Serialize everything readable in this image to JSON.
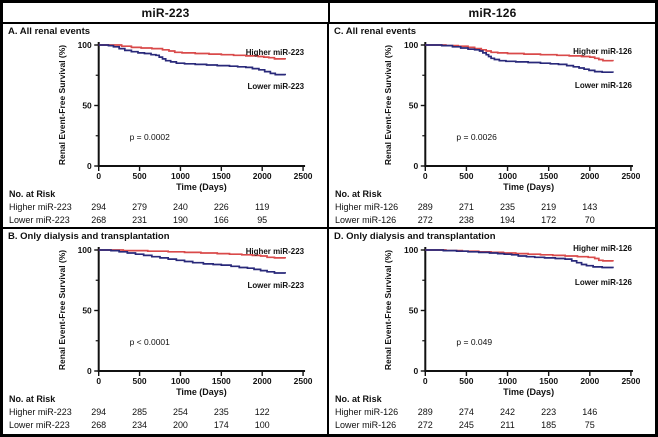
{
  "figure": {
    "headers": {
      "left": "miR-223",
      "right": "miR-126"
    },
    "colors": {
      "higher": "#D94A4A",
      "lower": "#29297A",
      "axis": "#111111",
      "text": "#111111"
    }
  },
  "chart_data": [
    {
      "type": "line",
      "panel": "A",
      "title": "A. All renal events",
      "group": "miR-223",
      "p_value": "p = 0.0002",
      "xlabel": "Time (Days)",
      "ylabel": "Renal Event-Free Survival (%)",
      "x_ticks": [
        0,
        500,
        1000,
        1500,
        2000,
        2500
      ],
      "y_ticks": [
        100,
        50,
        0
      ],
      "y_minor_ticks": [
        75,
        25
      ],
      "xlim": [
        0,
        2500
      ],
      "ylim": [
        0,
        100
      ],
      "series": [
        {
          "name": "Higher miR-223",
          "role": "higher",
          "label_y": 18,
          "points": [
            [
              0,
              100
            ],
            [
              200,
              100
            ],
            [
              280,
              99
            ],
            [
              400,
              98
            ],
            [
              520,
              97.5
            ],
            [
              650,
              97
            ],
            [
              780,
              96
            ],
            [
              860,
              95
            ],
            [
              930,
              94
            ],
            [
              1020,
              93.5
            ],
            [
              1180,
              93
            ],
            [
              1350,
              92.5
            ],
            [
              1500,
              92
            ],
            [
              1650,
              91.5
            ],
            [
              1800,
              91
            ],
            [
              1950,
              90.5
            ],
            [
              2020,
              90
            ],
            [
              2080,
              89.5
            ],
            [
              2150,
              88.5
            ],
            [
              2280,
              88
            ]
          ]
        },
        {
          "name": "Lower miR-223",
          "role": "lower",
          "label_y": 52,
          "points": [
            [
              0,
              100
            ],
            [
              120,
              99.5
            ],
            [
              180,
              98.5
            ],
            [
              250,
              97
            ],
            [
              320,
              95.5
            ],
            [
              400,
              94.5
            ],
            [
              480,
              93.5
            ],
            [
              560,
              93
            ],
            [
              640,
              92
            ],
            [
              700,
              91.5
            ],
            [
              740,
              90
            ],
            [
              780,
              88.5
            ],
            [
              820,
              87
            ],
            [
              880,
              86
            ],
            [
              950,
              85
            ],
            [
              1050,
              84.5
            ],
            [
              1180,
              84
            ],
            [
              1320,
              83.5
            ],
            [
              1450,
              83
            ],
            [
              1600,
              82.5
            ],
            [
              1700,
              82
            ],
            [
              1800,
              81.5
            ],
            [
              1880,
              80.5
            ],
            [
              1960,
              79.5
            ],
            [
              2030,
              78
            ],
            [
              2100,
              76.5
            ],
            [
              2160,
              75.5
            ],
            [
              2280,
              75
            ]
          ]
        }
      ],
      "risk_table": {
        "header": "No. at Risk",
        "days": [
          0,
          500,
          1000,
          1500,
          2000
        ],
        "rows": [
          {
            "label": "Higher miR-223",
            "values": [
              "294",
              "279",
              "240",
              "226",
              "119"
            ]
          },
          {
            "label": "Lower miR-223",
            "values": [
              "268",
              "231",
              "190",
              "166",
              "95"
            ]
          }
        ]
      }
    },
    {
      "type": "line",
      "panel": "B",
      "title": "B. Only dialysis and transplantation",
      "group": "miR-223",
      "p_value": "p < 0.0001",
      "xlabel": "Time (Days)",
      "ylabel": "Renal Event-Free Survival (%)",
      "x_ticks": [
        0,
        500,
        1000,
        1500,
        2000,
        2500
      ],
      "y_ticks": [
        100,
        50,
        0
      ],
      "y_minor_ticks": [
        75,
        25
      ],
      "xlim": [
        0,
        2500
      ],
      "ylim": [
        0,
        100
      ],
      "series": [
        {
          "name": "Higher miR-223",
          "role": "higher",
          "label_y": 12,
          "points": [
            [
              0,
              100
            ],
            [
              300,
              99.5
            ],
            [
              600,
              99
            ],
            [
              850,
              98.5
            ],
            [
              1050,
              98
            ],
            [
              1250,
              97.5
            ],
            [
              1450,
              97
            ],
            [
              1600,
              96.5
            ],
            [
              1750,
              96
            ],
            [
              1880,
              95.5
            ],
            [
              1980,
              95
            ],
            [
              2060,
              94
            ],
            [
              2150,
              93.5
            ],
            [
              2280,
              93
            ]
          ]
        },
        {
          "name": "Lower miR-223",
          "role": "lower",
          "label_y": 46,
          "points": [
            [
              0,
              100
            ],
            [
              150,
              99.5
            ],
            [
              250,
              98.5
            ],
            [
              350,
              97.5
            ],
            [
              450,
              96.5
            ],
            [
              550,
              95.5
            ],
            [
              650,
              94.5
            ],
            [
              750,
              93.5
            ],
            [
              850,
              92.5
            ],
            [
              950,
              91.5
            ],
            [
              1050,
              90.5
            ],
            [
              1150,
              89.5
            ],
            [
              1280,
              88.5
            ],
            [
              1400,
              88
            ],
            [
              1500,
              87.5
            ],
            [
              1620,
              86.5
            ],
            [
              1720,
              85.5
            ],
            [
              1820,
              85
            ],
            [
              1900,
              84
            ],
            [
              1980,
              83
            ],
            [
              2060,
              82
            ],
            [
              2150,
              81
            ],
            [
              2280,
              80.5
            ]
          ]
        }
      ],
      "risk_table": {
        "header": "No. at Risk",
        "days": [
          0,
          500,
          1000,
          1500,
          2000
        ],
        "rows": [
          {
            "label": "Higher miR-223",
            "values": [
              "294",
              "285",
              "254",
              "235",
              "122"
            ]
          },
          {
            "label": "Lower miR-223",
            "values": [
              "268",
              "234",
              "200",
              "174",
              "100"
            ]
          }
        ]
      }
    },
    {
      "type": "line",
      "panel": "C",
      "title": "C. All renal events",
      "group": "miR-126",
      "p_value": "p = 0.0026",
      "xlabel": "Time (Days)",
      "ylabel": "Renal Event-Free Survival (%)",
      "x_ticks": [
        0,
        500,
        1000,
        1500,
        2000,
        2500
      ],
      "y_ticks": [
        100,
        50,
        0
      ],
      "y_minor_ticks": [
        75,
        25
      ],
      "xlim": [
        0,
        2500
      ],
      "ylim": [
        0,
        100
      ],
      "series": [
        {
          "name": "Higher miR-126",
          "role": "higher",
          "label_y": 17,
          "points": [
            [
              0,
              100
            ],
            [
              250,
              99.5
            ],
            [
              400,
              99
            ],
            [
              520,
              98
            ],
            [
              600,
              97
            ],
            [
              680,
              96
            ],
            [
              740,
              95
            ],
            [
              800,
              94
            ],
            [
              880,
              93.5
            ],
            [
              1000,
              93
            ],
            [
              1200,
              92.5
            ],
            [
              1400,
              92
            ],
            [
              1600,
              91.5
            ],
            [
              1750,
              91
            ],
            [
              1900,
              90.5
            ],
            [
              2000,
              90
            ],
            [
              2060,
              89
            ],
            [
              2110,
              88
            ],
            [
              2160,
              87
            ],
            [
              2280,
              86.5
            ]
          ]
        },
        {
          "name": "Lower miR-126",
          "role": "lower",
          "label_y": 51,
          "points": [
            [
              0,
              100
            ],
            [
              200,
              99.5
            ],
            [
              330,
              98.5
            ],
            [
              430,
              97.5
            ],
            [
              520,
              96.5
            ],
            [
              600,
              96
            ],
            [
              660,
              95
            ],
            [
              700,
              93.5
            ],
            [
              740,
              92
            ],
            [
              770,
              90.5
            ],
            [
              800,
              89
            ],
            [
              840,
              88
            ],
            [
              900,
              87
            ],
            [
              980,
              86.5
            ],
            [
              1100,
              86
            ],
            [
              1250,
              85.5
            ],
            [
              1400,
              85
            ],
            [
              1520,
              84.5
            ],
            [
              1620,
              84
            ],
            [
              1720,
              83
            ],
            [
              1800,
              82
            ],
            [
              1870,
              81
            ],
            [
              1930,
              80
            ],
            [
              1990,
              79
            ],
            [
              2060,
              78
            ],
            [
              2150,
              77.5
            ],
            [
              2280,
              77
            ]
          ]
        }
      ],
      "risk_table": {
        "header": "No. at Risk",
        "days": [
          0,
          500,
          1000,
          1500,
          2000
        ],
        "rows": [
          {
            "label": "Higher miR-126",
            "values": [
              "289",
              "271",
              "235",
              "219",
              "143"
            ]
          },
          {
            "label": "Lower miR-126",
            "values": [
              "272",
              "238",
              "194",
              "172",
              "70"
            ]
          }
        ]
      }
    },
    {
      "type": "line",
      "panel": "D",
      "title": "D. Only dialysis and transplantation",
      "group": "miR-126",
      "p_value": "p = 0.049",
      "xlabel": "Time (Days)",
      "ylabel": "Renal Event-Free Survival (%)",
      "x_ticks": [
        0,
        500,
        1000,
        1500,
        2000,
        2500
      ],
      "y_ticks": [
        100,
        50,
        0
      ],
      "y_minor_ticks": [
        75,
        25
      ],
      "xlim": [
        0,
        2500
      ],
      "ylim": [
        0,
        100
      ],
      "series": [
        {
          "name": "Higher miR-126",
          "role": "higher",
          "label_y": 9,
          "points": [
            [
              0,
              100
            ],
            [
              250,
              99.5
            ],
            [
              450,
              99
            ],
            [
              650,
              98.5
            ],
            [
              800,
              98
            ],
            [
              950,
              97.5
            ],
            [
              1100,
              97
            ],
            [
              1250,
              96.5
            ],
            [
              1400,
              96
            ],
            [
              1550,
              95.5
            ],
            [
              1700,
              95
            ],
            [
              1850,
              94.5
            ],
            [
              1980,
              94
            ],
            [
              2060,
              93
            ],
            [
              2110,
              91.5
            ],
            [
              2160,
              91
            ],
            [
              2280,
              90.5
            ]
          ]
        },
        {
          "name": "Lower miR-126",
          "role": "lower",
          "label_y": 43,
          "points": [
            [
              0,
              100
            ],
            [
              220,
              99.5
            ],
            [
              380,
              99
            ],
            [
              520,
              98.5
            ],
            [
              650,
              98
            ],
            [
              780,
              97.5
            ],
            [
              880,
              97
            ],
            [
              960,
              96.5
            ],
            [
              1050,
              96
            ],
            [
              1130,
              95
            ],
            [
              1230,
              94.5
            ],
            [
              1330,
              94
            ],
            [
              1450,
              93.5
            ],
            [
              1580,
              93
            ],
            [
              1700,
              92.5
            ],
            [
              1780,
              91
            ],
            [
              1840,
              89.5
            ],
            [
              1900,
              88
            ],
            [
              1960,
              87
            ],
            [
              2040,
              86
            ],
            [
              2150,
              85.5
            ],
            [
              2280,
              85
            ]
          ]
        }
      ],
      "risk_table": {
        "header": "No. at Risk",
        "days": [
          0,
          500,
          1000,
          1500,
          2000
        ],
        "rows": [
          {
            "label": "Higher miR-126",
            "values": [
              "289",
              "274",
              "242",
              "223",
              "146"
            ]
          },
          {
            "label": "Lower miR-126",
            "values": [
              "272",
              "245",
              "211",
              "185",
              "75"
            ]
          }
        ]
      }
    }
  ]
}
